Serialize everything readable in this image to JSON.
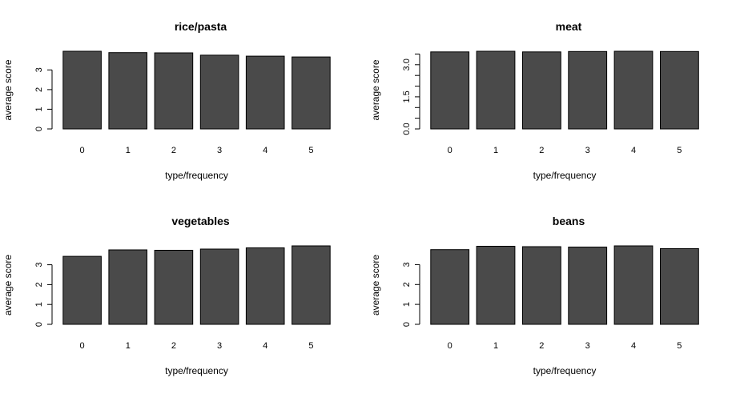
{
  "chart_data": [
    {
      "type": "bar",
      "title": "rice/pasta",
      "xlabel": "type/frequency",
      "ylabel": "average score",
      "categories": [
        "0",
        "1",
        "2",
        "3",
        "4",
        "5"
      ],
      "values": [
        3.95,
        3.88,
        3.87,
        3.75,
        3.7,
        3.66
      ],
      "ylim": [
        0,
        3.95
      ],
      "yticks": [
        0,
        1,
        2,
        3
      ],
      "ytick_labels": [
        "0",
        "1",
        "2",
        "3"
      ]
    },
    {
      "type": "bar",
      "title": "meat",
      "xlabel": "type/frequency",
      "ylabel": "average score",
      "categories": [
        "0",
        "1",
        "2",
        "3",
        "4",
        "5"
      ],
      "values": [
        3.6,
        3.63,
        3.6,
        3.62,
        3.63,
        3.62
      ],
      "ylim": [
        0,
        3.63
      ],
      "yticks": [
        0,
        0.5,
        1,
        1.5,
        2,
        2.5,
        3,
        3.5
      ],
      "ytick_labels": [
        "0.0",
        "",
        "",
        "1.5",
        "",
        "",
        "3.0",
        ""
      ]
    },
    {
      "type": "bar",
      "title": "vegetables",
      "xlabel": "type/frequency",
      "ylabel": "average score",
      "categories": [
        "0",
        "1",
        "2",
        "3",
        "4",
        "5"
      ],
      "values": [
        3.42,
        3.75,
        3.73,
        3.79,
        3.85,
        3.95
      ],
      "ylim": [
        0,
        3.95
      ],
      "yticks": [
        0,
        1,
        2,
        3
      ],
      "ytick_labels": [
        "0",
        "1",
        "2",
        "3"
      ]
    },
    {
      "type": "bar",
      "title": "beans",
      "xlabel": "type/frequency",
      "ylabel": "average score",
      "categories": [
        "0",
        "1",
        "2",
        "3",
        "4",
        "5"
      ],
      "values": [
        3.75,
        3.92,
        3.9,
        3.88,
        3.94,
        3.8
      ],
      "ylim": [
        0,
        3.94
      ],
      "yticks": [
        0,
        1,
        2,
        3
      ],
      "ytick_labels": [
        "0",
        "1",
        "2",
        "3"
      ]
    }
  ],
  "colors": {
    "bar_fill": "#4a4a4a",
    "bar_stroke": "#000000",
    "background": "#ffffff"
  }
}
